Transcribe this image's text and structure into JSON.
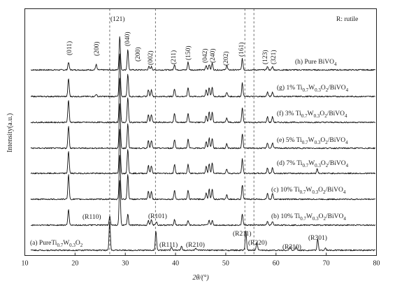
{
  "chart_data": {
    "type": "line",
    "xlabel": "2θ/(°)",
    "ylabel": "Intensity(a.u.)",
    "xlim": [
      10,
      80
    ],
    "x_ticks": [
      "10",
      "20",
      "30",
      "40",
      "50",
      "60",
      "70",
      "80"
    ],
    "y_ticks_shown": false,
    "grid": false,
    "reference_lines_2theta": [
      26.9,
      36.0,
      53.8,
      55.6
    ],
    "note": "R: rutile",
    "series": [
      {
        "label": "(h) Pure BiVO",
        "sub": "4",
        "peaks": [
          [
            18.7,
            7
          ],
          [
            24.2,
            5
          ],
          [
            28.9,
            30
          ],
          [
            30.5,
            18
          ],
          [
            34.7,
            3
          ],
          [
            35.2,
            3
          ],
          [
            39.8,
            5
          ],
          [
            42.5,
            7
          ],
          [
            46.1,
            4
          ],
          [
            46.7,
            5
          ],
          [
            47.3,
            6
          ],
          [
            50.2,
            4
          ],
          [
            53.3,
            10
          ],
          [
            58.3,
            3
          ],
          [
            59.3,
            3
          ]
        ]
      },
      {
        "label": "(g) 1% Ti",
        "sub_label": "0.7W0.3O2/BiVO4",
        "peaks": [
          [
            18.7,
            16
          ],
          [
            24.2,
            2
          ],
          [
            28.9,
            38
          ],
          [
            30.5,
            20
          ],
          [
            34.6,
            6
          ],
          [
            35.2,
            6
          ],
          [
            39.8,
            7
          ],
          [
            42.5,
            8
          ],
          [
            46.1,
            6
          ],
          [
            46.7,
            8
          ],
          [
            47.3,
            8
          ],
          [
            50.2,
            4
          ],
          [
            53.3,
            12
          ],
          [
            58.3,
            4
          ],
          [
            59.3,
            4
          ]
        ]
      },
      {
        "label": "(f) 3% Ti",
        "peaks": [
          [
            18.7,
            20
          ],
          [
            28.9,
            40
          ],
          [
            30.5,
            22
          ],
          [
            34.6,
            7
          ],
          [
            35.2,
            7
          ],
          [
            39.8,
            8
          ],
          [
            42.5,
            8
          ],
          [
            46.1,
            6
          ],
          [
            46.7,
            9
          ],
          [
            47.3,
            9
          ],
          [
            50.2,
            4
          ],
          [
            53.3,
            13
          ],
          [
            58.3,
            5
          ],
          [
            59.3,
            5
          ]
        ]
      },
      {
        "label": "(e) 5% Ti",
        "peaks": [
          [
            18.7,
            20
          ],
          [
            28.9,
            40
          ],
          [
            30.5,
            22
          ],
          [
            34.6,
            7
          ],
          [
            35.2,
            7
          ],
          [
            39.8,
            8
          ],
          [
            42.5,
            8
          ],
          [
            46.1,
            6
          ],
          [
            46.7,
            9
          ],
          [
            47.3,
            9
          ],
          [
            50.2,
            4
          ],
          [
            53.3,
            13
          ],
          [
            58.3,
            5
          ],
          [
            59.3,
            5
          ]
        ]
      },
      {
        "label": "(d) 7% Ti",
        "peaks": [
          [
            18.7,
            20
          ],
          [
            28.9,
            40
          ],
          [
            30.5,
            22
          ],
          [
            34.6,
            7
          ],
          [
            35.2,
            7
          ],
          [
            39.8,
            8
          ],
          [
            42.5,
            8
          ],
          [
            46.1,
            6
          ],
          [
            46.7,
            9
          ],
          [
            47.3,
            9
          ],
          [
            50.2,
            4
          ],
          [
            53.3,
            13
          ],
          [
            58.3,
            5
          ],
          [
            59.3,
            5
          ],
          [
            68.2,
            4
          ]
        ]
      },
      {
        "label": "(c) 10% Ti",
        "peaks": [
          [
            18.7,
            22
          ],
          [
            28.9,
            40
          ],
          [
            30.5,
            22
          ],
          [
            34.6,
            7
          ],
          [
            35.2,
            7
          ],
          [
            39.8,
            8
          ],
          [
            42.5,
            8
          ],
          [
            46.1,
            6
          ],
          [
            46.7,
            9
          ],
          [
            47.3,
            9
          ],
          [
            50.2,
            4
          ],
          [
            53.3,
            13
          ],
          [
            58.3,
            5
          ],
          [
            59.3,
            5
          ]
        ]
      },
      {
        "label": "(b) 10% Ti",
        "peaks": [
          [
            18.7,
            14
          ],
          [
            26.9,
            8
          ],
          [
            28.9,
            40
          ],
          [
            30.5,
            10
          ],
          [
            34.6,
            4
          ],
          [
            35.2,
            5
          ],
          [
            36.2,
            3
          ],
          [
            39.8,
            5
          ],
          [
            42.5,
            4
          ],
          [
            46.7,
            4
          ],
          [
            47.3,
            4
          ],
          [
            53.3,
            10
          ],
          [
            58.3,
            3
          ],
          [
            59.3,
            3
          ]
        ]
      },
      {
        "label": "(a) PureTi",
        "peaks": [
          [
            26.9,
            26
          ],
          [
            36.1,
            17
          ],
          [
            39.2,
            3
          ],
          [
            41.2,
            4
          ],
          [
            44.0,
            2
          ],
          [
            54.0,
            17
          ],
          [
            56.2,
            7
          ],
          [
            62.8,
            3
          ],
          [
            64.0,
            3
          ],
          [
            68.3,
            10
          ],
          [
            69.8,
            2
          ]
        ]
      }
    ]
  },
  "labels": {
    "rutile_note": "R: rutile",
    "legend": {
      "h": "(h) Pure BiVO",
      "h_sub": "4",
      "g_a": "(g) 1% Ti",
      "c_a": "(c) 10% Ti",
      "sub_ti": "0.7",
      "w": "W",
      "sub_w": "0.3",
      "o": "O",
      "sub_o": "2",
      "bivo": "/BiVO",
      "sub_bivo": "4",
      "f_a": "(f) 3% Ti",
      "e_a": "(e) 5% Ti",
      "d_a": "(d) 7% Ti",
      "b_a": "(b) 10% Ti",
      "a_a": "(a) PureTi"
    },
    "bivo4_peaks": [
      "(011)",
      "(200)",
      "(121)",
      "(040)",
      "(200)",
      "(002)",
      "(211)",
      "(150)",
      "(042)",
      "(240)",
      "(202)",
      "(161)",
      "(123)",
      "(321)"
    ],
    "rutile_peaks": [
      "(R110)",
      "(R101)",
      "(R111)",
      "(R210)",
      "(R211)",
      "(R220)",
      "(R310)",
      "(R301)"
    ]
  }
}
